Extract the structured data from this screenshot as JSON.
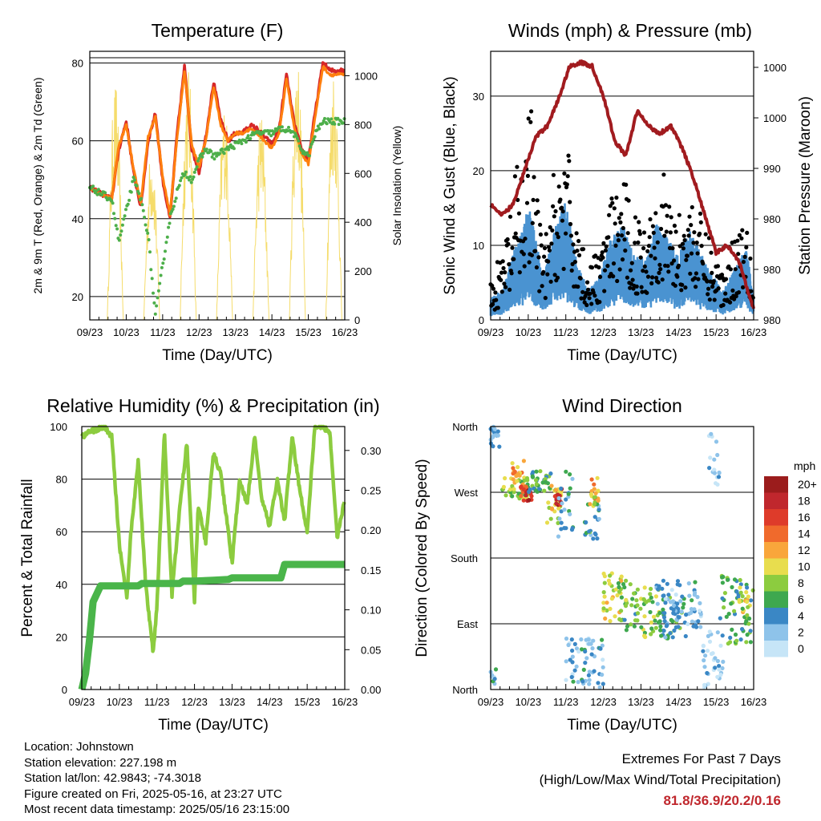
{
  "chart_data": [
    {
      "type": "line",
      "title": "Temperature (F)",
      "xlabel": "Time (Day/UTC)",
      "ylabel": "2m & 9m T (Red, Orange) & 2m Td (Green)",
      "ylabel_right": "Solar Insolation (Yellow)",
      "xticks": [
        "09/23",
        "10/23",
        "11/23",
        "12/23",
        "13/23",
        "14/23",
        "15/23",
        "16/23"
      ],
      "ylim": [
        14,
        83
      ],
      "yticks": [
        20,
        40,
        60,
        80
      ],
      "ylim_right": [
        0,
        1100
      ],
      "yticks_right": [
        0,
        200,
        400,
        600,
        800,
        1000
      ],
      "x_days": [
        0,
        0.2,
        0.4,
        0.6,
        0.8,
        1.0,
        1.2,
        1.4,
        1.6,
        1.8,
        2.0,
        2.2,
        2.4,
        2.6,
        2.8,
        3.0,
        3.2,
        3.4,
        3.6,
        3.8,
        4.0,
        4.2,
        4.4,
        4.6,
        4.8,
        5.0,
        5.2,
        5.4,
        5.6,
        5.8,
        6.0,
        6.2,
        6.4,
        6.6,
        6.8,
        7.0
      ],
      "series": [
        {
          "color": "#d62728",
          "values": [
            48,
            47,
            46,
            45,
            58,
            65,
            52,
            43,
            60,
            67,
            50,
            40,
            62,
            79,
            58,
            52,
            62,
            75,
            65,
            60,
            62,
            62,
            64,
            63,
            61,
            59,
            63,
            77,
            65,
            58,
            55,
            68,
            80,
            78,
            78,
            78
          ]
        },
        {
          "color": "#ff7f0e",
          "values": [
            48,
            47,
            46,
            45,
            59,
            64,
            53,
            44,
            61,
            66,
            51,
            41,
            61,
            78,
            59,
            53,
            61,
            74,
            64,
            60,
            62,
            62,
            63,
            62,
            60,
            58,
            62,
            76,
            64,
            57,
            54,
            67,
            79,
            77,
            77,
            77
          ]
        },
        {
          "color": "#4daf4a",
          "values": [
            48,
            47,
            46,
            45,
            34,
            42,
            50,
            45,
            36,
            15,
            28,
            40,
            47,
            52,
            50,
            55,
            58,
            56,
            57,
            58,
            59,
            60,
            61,
            62,
            62,
            62,
            63,
            63,
            62,
            58,
            56,
            62,
            65,
            65,
            65,
            65
          ]
        }
      ],
      "series_right": {
        "color": "#f5dc6b",
        "days": [
          0.7,
          1.7,
          2.7,
          3.7,
          4.7,
          5.7,
          6.7
        ],
        "peaks": [
          980,
          720,
          1050,
          900,
          870,
          1100,
          1050
        ]
      }
    },
    {
      "type": "scatter",
      "title": "Winds (mph) & Pressure (mb)",
      "xlabel": "Time (Day/UTC)",
      "ylabel": "Sonic Wind & Gust (Blue, Black)",
      "ylabel_right": "Station Pressure (Maroon)",
      "xticks": [
        "09/23",
        "10/23",
        "11/23",
        "12/23",
        "13/23",
        "14/23",
        "15/23",
        "16/23"
      ],
      "ylim": [
        0,
        36
      ],
      "yticks": [
        0,
        10,
        20,
        30
      ],
      "yticks_right": [
        "980",
        "980",
        "980",
        "990",
        "1000",
        "1000"
      ],
      "wind_envelope": {
        "days": [
          0,
          0.3,
          0.6,
          0.9,
          1.0,
          1.2,
          1.4,
          1.6,
          1.8,
          2.0,
          2.3,
          2.6,
          2.9,
          3.2,
          3.5,
          3.8,
          4.1,
          4.4,
          4.7,
          5.0,
          5.3,
          5.6,
          5.9,
          6.2,
          6.5,
          6.8,
          7.0
        ],
        "values": [
          3,
          4,
          9,
          13,
          16,
          11,
          6,
          10,
          14,
          16,
          8,
          4,
          6,
          11,
          13,
          9,
          8,
          13,
          11,
          9,
          12,
          9,
          6,
          4,
          7,
          10,
          3
        ]
      },
      "gust_envelope": {
        "days": [
          0,
          0.3,
          0.6,
          0.9,
          1.0,
          1.2,
          1.4,
          1.6,
          1.8,
          2.0,
          2.3,
          2.6,
          2.9,
          3.2,
          3.5,
          3.8,
          4.1,
          4.4,
          4.7,
          5.0,
          5.3,
          5.6,
          5.9,
          6.2,
          6.5,
          6.8,
          7.0
        ],
        "values": [
          6,
          9,
          18,
          26,
          34,
          20,
          9,
          17,
          24,
          25,
          14,
          7,
          10,
          16,
          20,
          15,
          13,
          21,
          19,
          14,
          18,
          14,
          10,
          7,
          12,
          18,
          5
        ]
      },
      "pressure": {
        "days": [
          0,
          0.3,
          0.6,
          0.9,
          1.2,
          1.5,
          1.8,
          2.1,
          2.4,
          2.7,
          3.0,
          3.3,
          3.6,
          3.9,
          4.2,
          4.5,
          4.8,
          5.1,
          5.4,
          5.7,
          6.0,
          6.3,
          6.6,
          6.9,
          7.0
        ],
        "values": [
          15.5,
          14,
          15.5,
          20,
          24.5,
          26,
          29.5,
          34,
          34.5,
          34,
          30,
          24,
          22,
          28,
          26,
          25,
          26,
          23,
          19,
          14,
          9,
          10,
          8,
          3,
          1.5
        ]
      }
    },
    {
      "type": "line",
      "title": "Relative Humidity (%) & Precipitation (in)",
      "xlabel": "Time (Day/UTC)",
      "ylabel": "Percent & Total Rainfall",
      "xticks": [
        "09/23",
        "10/23",
        "11/23",
        "12/23",
        "13/23",
        "14/23",
        "15/23",
        "16/23"
      ],
      "ylim": [
        0,
        100
      ],
      "yticks": [
        0,
        20,
        40,
        60,
        80,
        100
      ],
      "yticks_right": [
        "0.00",
        "0.05",
        "0.10",
        "0.15",
        "0.20",
        "0.25",
        "0.30"
      ],
      "ylim_right": [
        0,
        0.33
      ],
      "series": [
        {
          "name": "Relative Humidity",
          "color": "#8ccc3f",
          "days": [
            0,
            0.2,
            0.4,
            0.6,
            0.8,
            1.0,
            1.2,
            1.3,
            1.5,
            1.7,
            1.9,
            2.0,
            2.2,
            2.4,
            2.6,
            2.8,
            3.0,
            3.1,
            3.3,
            3.5,
            3.7,
            3.9,
            4.0,
            4.2,
            4.4,
            4.6,
            4.8,
            5.0,
            5.2,
            5.4,
            5.6,
            5.8,
            6.0,
            6.2,
            6.4,
            6.6,
            6.8,
            7.0
          ],
          "values": [
            96,
            98,
            99,
            100,
            96,
            55,
            35,
            58,
            87,
            40,
            14,
            32,
            98,
            36,
            68,
            94,
            34,
            70,
            56,
            90,
            82,
            60,
            48,
            80,
            70,
            96,
            72,
            62,
            80,
            64,
            96,
            76,
            60,
            100,
            100,
            98,
            58,
            72
          ]
        },
        {
          "name": "Precipitation",
          "color": "#4ab54a",
          "days": [
            0,
            0.1,
            0.2,
            0.3,
            0.5,
            1.0,
            1.5,
            1.6,
            2.0,
            2.6,
            2.7,
            3.0,
            3.5,
            3.9,
            4.0,
            4.5,
            5.0,
            5.3,
            5.4,
            6.0,
            6.5,
            7.0
          ],
          "values": [
            0,
            0.02,
            0.06,
            0.11,
            0.13,
            0.13,
            0.13,
            0.133,
            0.133,
            0.133,
            0.136,
            0.136,
            0.137,
            0.138,
            0.14,
            0.14,
            0.14,
            0.14,
            0.157,
            0.157,
            0.157,
            0.157
          ]
        }
      ]
    },
    {
      "type": "scatter",
      "title": "Wind Direction",
      "xlabel": "Time (Day/UTC)",
      "ylabel": "Direction (Colored By Speed)",
      "xticks": [
        "09/23",
        "10/23",
        "11/23",
        "12/23",
        "13/23",
        "14/23",
        "15/23",
        "16/23"
      ],
      "yticks": [
        "North",
        "East",
        "South",
        "West",
        "North"
      ],
      "ylim": [
        0,
        360
      ],
      "colorbar": {
        "title": "mph",
        "labels": [
          "20+",
          "18",
          "16",
          "14",
          "12",
          "10",
          "8",
          "6",
          "4",
          "2",
          "0"
        ],
        "colors": [
          "#9b1c1c",
          "#c0272d",
          "#de3b2a",
          "#f06a2c",
          "#f9a63b",
          "#e8dd4e",
          "#8ccc3f",
          "#3ea84f",
          "#3a87c5",
          "#8ec3ea",
          "#c6e5f7"
        ]
      },
      "clusters": [
        {
          "d0": 0.0,
          "d1": 0.15,
          "dir0": 0,
          "dir1": 30,
          "spd": 3
        },
        {
          "d0": 0.0,
          "d1": 0.25,
          "dir0": 330,
          "dir1": 360,
          "spd": 2
        },
        {
          "d0": 0.3,
          "d1": 1.0,
          "dir0": 260,
          "dir1": 290,
          "spd": 8
        },
        {
          "d0": 0.55,
          "d1": 0.9,
          "dir0": 270,
          "dir1": 320,
          "spd": 12
        },
        {
          "d0": 0.8,
          "d1": 1.1,
          "dir0": 255,
          "dir1": 280,
          "spd": 17
        },
        {
          "d0": 1.0,
          "d1": 1.6,
          "dir0": 270,
          "dir1": 300,
          "spd": 6
        },
        {
          "d0": 1.5,
          "d1": 1.9,
          "dir0": 220,
          "dir1": 280,
          "spd": 10
        },
        {
          "d0": 1.7,
          "d1": 1.9,
          "dir0": 245,
          "dir1": 275,
          "spd": 18
        },
        {
          "d0": 1.8,
          "d1": 2.2,
          "dir0": 200,
          "dir1": 300,
          "spd": 4
        },
        {
          "d0": 2.0,
          "d1": 3.0,
          "dir0": 0,
          "dir1": 70,
          "spd": 3
        },
        {
          "d0": 2.5,
          "d1": 2.9,
          "dir0": 200,
          "dir1": 260,
          "spd": 5
        },
        {
          "d0": 2.6,
          "d1": 2.9,
          "dir0": 250,
          "dir1": 290,
          "spd": 11
        },
        {
          "d0": 3.0,
          "d1": 3.5,
          "dir0": 90,
          "dir1": 160,
          "spd": 10
        },
        {
          "d0": 3.4,
          "d1": 3.9,
          "dir0": 80,
          "dir1": 150,
          "spd": 7
        },
        {
          "d0": 3.9,
          "d1": 4.5,
          "dir0": 70,
          "dir1": 140,
          "spd": 8
        },
        {
          "d0": 4.5,
          "d1": 5.2,
          "dir0": 70,
          "dir1": 130,
          "spd": 5
        },
        {
          "d0": 4.4,
          "d1": 5.6,
          "dir0": 80,
          "dir1": 150,
          "spd": 3
        },
        {
          "d0": 5.6,
          "d1": 6.2,
          "dir0": 0,
          "dir1": 80,
          "spd": 2
        },
        {
          "d0": 5.8,
          "d1": 6.1,
          "dir0": 270,
          "dir1": 360,
          "spd": 1
        },
        {
          "d0": 6.1,
          "d1": 7.0,
          "dir0": 60,
          "dir1": 160,
          "spd": 6
        },
        {
          "d0": 6.6,
          "d1": 6.9,
          "dir0": 90,
          "dir1": 140,
          "spd": 9
        }
      ]
    }
  ],
  "footer": {
    "location": "Location: Johnstown",
    "elevation": "Station elevation: 227.198 m",
    "latlon": "Station lat/lon: 42.9843; -74.3018",
    "created": "Figure created on Fri, 2025-05-16, at 23:27 UTC",
    "recent": "Most recent data timestamp: 2025/05/16 23:15:00"
  },
  "extremes": {
    "title": "Extremes For Past 7 Days",
    "subtitle": "(High/Low/Max Wind/Total Precipitation)",
    "values": "81.8/36.9/20.2/0.16"
  }
}
